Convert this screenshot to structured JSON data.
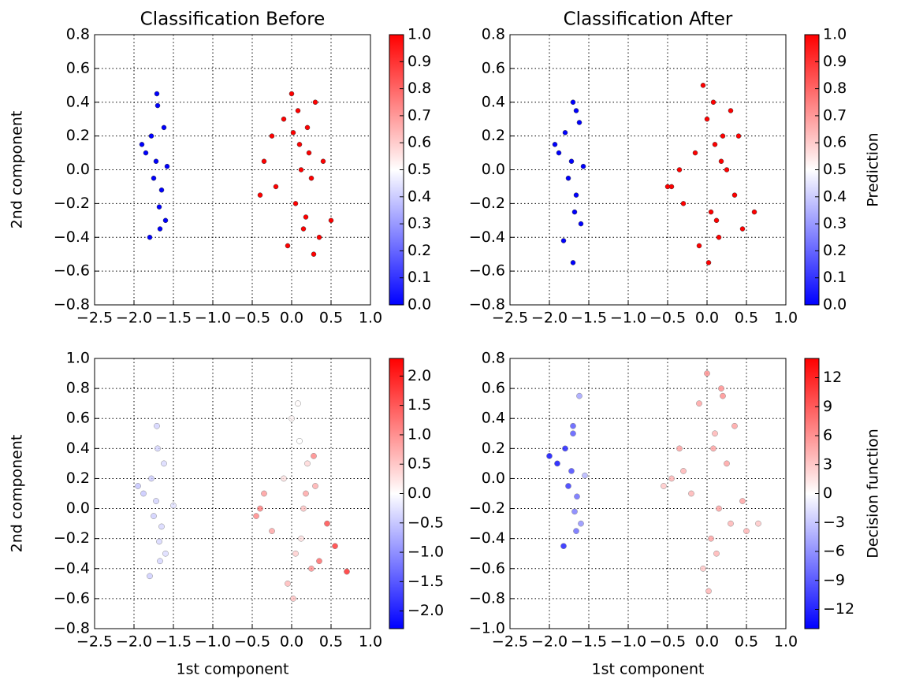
{
  "chart_data": [
    {
      "type": "scatter",
      "title": "Classification Before",
      "ylabel": "2nd component",
      "cmap": "bwr",
      "grid": true,
      "alpha": 1,
      "x": [
        -1.72,
        -1.65,
        -1.78,
        -1.6,
        -1.7,
        -1.85,
        -1.68,
        -1.75,
        -1.62,
        -1.8,
        -1.71,
        -1.58,
        -1.9,
        -1.67,
        -0.35,
        -0.2,
        -0.1,
        0.0,
        0.05,
        0.1,
        0.15,
        0.2,
        0.25,
        0.3,
        -0.05,
        0.08,
        0.12,
        0.18,
        0.22,
        -0.25,
        -0.4,
        0.35,
        0.4,
        0.02,
        0.28,
        0.5
      ],
      "y": [
        0.05,
        -0.12,
        0.2,
        -0.3,
        0.38,
        0.1,
        -0.22,
        -0.05,
        0.25,
        -0.4,
        0.45,
        0.02,
        0.15,
        -0.35,
        0.05,
        -0.1,
        0.3,
        0.45,
        -0.2,
        0.15,
        -0.35,
        0.25,
        -0.05,
        0.4,
        -0.45,
        0.35,
        0.0,
        -0.28,
        0.1,
        0.2,
        -0.15,
        -0.4,
        0.05,
        0.22,
        -0.5,
        -0.3
      ],
      "c": [
        0,
        0,
        0,
        0,
        0,
        0,
        0,
        0,
        0,
        0,
        0,
        0,
        0,
        0,
        1,
        1,
        1,
        1,
        1,
        1,
        1,
        1,
        1,
        1,
        1,
        1,
        1,
        1,
        1,
        1,
        1,
        1,
        1,
        1,
        1,
        1
      ],
      "xlim": [
        -2.5,
        1.0
      ],
      "ylim": [
        -0.8,
        0.8
      ],
      "clim": [
        0.0,
        1.0
      ],
      "xticks": [
        {
          "value": -2.5,
          "label": "−2.5"
        },
        {
          "value": -2.0,
          "label": "−2.0"
        },
        {
          "value": -1.5,
          "label": "−1.5"
        },
        {
          "value": -1.0,
          "label": "−1.0"
        },
        {
          "value": -0.5,
          "label": "−0.5"
        },
        {
          "value": 0.0,
          "label": "0.0"
        },
        {
          "value": 0.5,
          "label": "0.5"
        },
        {
          "value": 1.0,
          "label": "1.0"
        }
      ],
      "yticks": [
        {
          "value": -0.8,
          "label": "−0.8"
        },
        {
          "value": -0.6,
          "label": "−0.6"
        },
        {
          "value": -0.4,
          "label": "−0.4"
        },
        {
          "value": -0.2,
          "label": "−0.2"
        },
        {
          "value": 0.0,
          "label": "0.0"
        },
        0.2,
        0.4,
        0.6,
        0.8
      ],
      "cticks": [
        {
          "value": 0.0,
          "label": "0.0"
        },
        0.1,
        0.2,
        0.3,
        0.4,
        0.5,
        0.6,
        0.7,
        0.8,
        0.9,
        {
          "value": 1.0,
          "label": "1.0"
        }
      ]
    },
    {
      "type": "scatter",
      "title": "Classification After",
      "clabel": "Prediction",
      "cmap": "bwr",
      "grid": true,
      "alpha": 1,
      "x": [
        -1.72,
        -1.66,
        -1.8,
        -1.6,
        -1.7,
        -1.88,
        -1.68,
        -1.76,
        -1.62,
        -1.82,
        -1.7,
        -1.57,
        -1.93,
        -1.66,
        -0.45,
        -0.3,
        -0.15,
        -0.05,
        0.0,
        0.05,
        0.1,
        0.15,
        0.2,
        0.25,
        0.3,
        0.35,
        -0.1,
        0.08,
        0.12,
        0.18,
        -0.35,
        -0.5,
        0.4,
        0.45,
        0.02,
        0.6
      ],
      "y": [
        0.05,
        -0.15,
        0.22,
        -0.32,
        0.4,
        0.1,
        -0.25,
        -0.05,
        0.28,
        -0.42,
        -0.55,
        0.02,
        0.15,
        0.35,
        -0.1,
        -0.2,
        0.1,
        0.5,
        0.3,
        -0.25,
        0.15,
        -0.4,
        0.2,
        0.0,
        0.35,
        -0.15,
        -0.45,
        0.4,
        -0.3,
        0.05,
        0.0,
        -0.1,
        0.2,
        -0.35,
        -0.55,
        -0.25
      ],
      "c": [
        0,
        0,
        0,
        0,
        0,
        0,
        0,
        0,
        0,
        0,
        0,
        0,
        0,
        0,
        1,
        1,
        1,
        1,
        1,
        1,
        1,
        1,
        1,
        1,
        1,
        1,
        1,
        1,
        1,
        1,
        1,
        1,
        1,
        1,
        1,
        1
      ],
      "xlim": [
        -2.5,
        1.0
      ],
      "ylim": [
        -0.8,
        0.8
      ],
      "clim": [
        0.0,
        1.0
      ],
      "xticks": [
        {
          "value": -2.5,
          "label": "−2.5"
        },
        {
          "value": -2.0,
          "label": "−2.0"
        },
        {
          "value": -1.5,
          "label": "−1.5"
        },
        {
          "value": -1.0,
          "label": "−1.0"
        },
        {
          "value": -0.5,
          "label": "−0.5"
        },
        {
          "value": 0.0,
          "label": "0.0"
        },
        {
          "value": 0.5,
          "label": "0.5"
        },
        {
          "value": 1.0,
          "label": "1.0"
        }
      ],
      "yticks": [
        {
          "value": -0.8,
          "label": "−0.8"
        },
        {
          "value": -0.6,
          "label": "−0.6"
        },
        {
          "value": -0.4,
          "label": "−0.4"
        },
        {
          "value": -0.2,
          "label": "−0.2"
        },
        {
          "value": 0.0,
          "label": "0.0"
        },
        0.2,
        0.4,
        0.6,
        0.8
      ],
      "cticks": [
        {
          "value": 0.0,
          "label": "0.0"
        },
        0.1,
        0.2,
        0.3,
        0.4,
        0.5,
        0.6,
        0.7,
        0.8,
        0.9,
        {
          "value": 1.0,
          "label": "1.0"
        }
      ]
    },
    {
      "type": "scatter",
      "xlabel": "1st component",
      "ylabel": "2nd component",
      "cmap": "bwr",
      "grid": true,
      "alpha": 0.75,
      "x": [
        -1.72,
        -1.65,
        -1.78,
        -1.6,
        -1.7,
        -1.88,
        -1.68,
        -1.75,
        -1.62,
        -1.8,
        -1.71,
        -1.5,
        -1.95,
        -1.67,
        -0.45,
        -0.35,
        -0.25,
        -0.1,
        0.0,
        0.05,
        0.1,
        0.15,
        0.2,
        0.25,
        0.3,
        -0.05,
        0.08,
        0.12,
        0.18,
        0.35,
        -0.4,
        0.45,
        0.55,
        0.02,
        0.28,
        0.7
      ],
      "y": [
        0.05,
        -0.12,
        0.2,
        -0.3,
        0.4,
        0.1,
        -0.22,
        -0.05,
        0.3,
        -0.45,
        0.55,
        0.02,
        0.15,
        -0.35,
        -0.05,
        0.1,
        -0.15,
        0.2,
        0.6,
        -0.3,
        0.45,
        0.0,
        0.3,
        -0.4,
        0.15,
        -0.5,
        0.7,
        -0.2,
        0.1,
        -0.35,
        0.0,
        -0.1,
        -0.25,
        -0.6,
        0.35,
        -0.42
      ],
      "c": [
        -0.45,
        -0.4,
        -0.5,
        -0.35,
        -0.42,
        -0.55,
        -0.4,
        -0.48,
        -0.38,
        -0.5,
        -0.45,
        -0.3,
        -0.6,
        -0.42,
        1.2,
        1.0,
        0.9,
        0.3,
        0.1,
        0.5,
        0.0,
        0.6,
        0.4,
        1.1,
        0.8,
        0.7,
        0.05,
        0.3,
        0.9,
        1.5,
        1.3,
        1.8,
        2.0,
        0.6,
        1.2,
        2.1
      ],
      "xlim": [
        -2.5,
        1.0
      ],
      "ylim": [
        -0.8,
        1.0
      ],
      "clim": [
        -2.3,
        2.3
      ],
      "xticks": [
        {
          "value": -2.5,
          "label": "−2.5"
        },
        {
          "value": -2.0,
          "label": "−2.0"
        },
        {
          "value": -1.5,
          "label": "−1.5"
        },
        {
          "value": -1.0,
          "label": "−1.0"
        },
        {
          "value": -0.5,
          "label": "−0.5"
        },
        {
          "value": 0.0,
          "label": "0.0"
        },
        {
          "value": 0.5,
          "label": "0.5"
        },
        {
          "value": 1.0,
          "label": "1.0"
        }
      ],
      "yticks": [
        {
          "value": -0.8,
          "label": "−0.8"
        },
        {
          "value": -0.6,
          "label": "−0.6"
        },
        {
          "value": -0.4,
          "label": "−0.4"
        },
        {
          "value": -0.2,
          "label": "−0.2"
        },
        {
          "value": 0.0,
          "label": "0.0"
        },
        0.2,
        0.4,
        0.6,
        0.8,
        {
          "value": 1.0,
          "label": "1.0"
        }
      ],
      "cticks": [
        {
          "value": -2.0,
          "label": "−2.0"
        },
        {
          "value": -1.5,
          "label": "−1.5"
        },
        {
          "value": -1.0,
          "label": "−1.0"
        },
        {
          "value": -0.5,
          "label": "−0.5"
        },
        {
          "value": 0.0,
          "label": "0.0"
        },
        0.5,
        {
          "value": 1.0,
          "label": "1.0"
        },
        1.5,
        {
          "value": 2.0,
          "label": "2.0"
        }
      ]
    },
    {
      "type": "scatter",
      "xlabel": "1st component",
      "clabel": "Decision function",
      "cmap": "bwr",
      "grid": true,
      "alpha": 0.85,
      "x": [
        -1.72,
        -1.65,
        -1.8,
        -1.6,
        -1.7,
        -1.9,
        -1.68,
        -1.76,
        -1.62,
        -1.82,
        -1.7,
        -1.55,
        -2.0,
        -1.66,
        -0.45,
        -0.35,
        -0.2,
        -0.1,
        0.0,
        0.05,
        0.1,
        0.15,
        0.2,
        0.25,
        0.3,
        0.35,
        -0.05,
        0.08,
        0.12,
        0.18,
        -0.3,
        -0.55,
        0.45,
        0.5,
        0.02,
        0.65
      ],
      "y": [
        0.05,
        -0.12,
        0.2,
        -0.3,
        0.35,
        0.1,
        -0.22,
        -0.05,
        0.55,
        -0.45,
        0.3,
        0.02,
        0.15,
        -0.35,
        0.0,
        0.2,
        -0.1,
        0.5,
        0.7,
        -0.4,
        0.3,
        -0.2,
        0.55,
        0.1,
        -0.3,
        0.35,
        -0.6,
        0.2,
        -0.5,
        0.6,
        0.05,
        -0.05,
        -0.15,
        -0.35,
        -0.75,
        -0.3
      ],
      "c": [
        -10,
        -8,
        -12,
        -6,
        -9,
        -13,
        -7,
        -11,
        -5,
        -12,
        -9,
        -4,
        -13,
        -8,
        4,
        5,
        4,
        5,
        6,
        5,
        4,
        5,
        6,
        5,
        4,
        5,
        3,
        5,
        4,
        6,
        4,
        3,
        5,
        4,
        4,
        3
      ],
      "xlim": [
        -2.5,
        1.0
      ],
      "ylim": [
        -1.0,
        0.8
      ],
      "clim": [
        -14,
        14
      ],
      "xticks": [
        {
          "value": -2.5,
          "label": "−2.5"
        },
        {
          "value": -2.0,
          "label": "−2.0"
        },
        {
          "value": -1.5,
          "label": "−1.5"
        },
        {
          "value": -1.0,
          "label": "−1.0"
        },
        {
          "value": -0.5,
          "label": "−0.5"
        },
        {
          "value": 0.0,
          "label": "0.0"
        },
        {
          "value": 0.5,
          "label": "0.5"
        },
        {
          "value": 1.0,
          "label": "1.0"
        }
      ],
      "yticks": [
        {
          "value": -1.0,
          "label": "−1.0"
        },
        {
          "value": -0.8,
          "label": "−0.8"
        },
        {
          "value": -0.6,
          "label": "−0.6"
        },
        {
          "value": -0.4,
          "label": "−0.4"
        },
        {
          "value": -0.2,
          "label": "−0.2"
        },
        {
          "value": 0.0,
          "label": "0.0"
        },
        0.2,
        0.4,
        0.6,
        0.8
      ],
      "cticks": [
        {
          "value": -12,
          "label": "−12"
        },
        {
          "value": -9,
          "label": "−9"
        },
        {
          "value": -6,
          "label": "−6"
        },
        {
          "value": -3,
          "label": "−3"
        },
        0,
        3,
        6,
        9,
        12
      ]
    }
  ]
}
